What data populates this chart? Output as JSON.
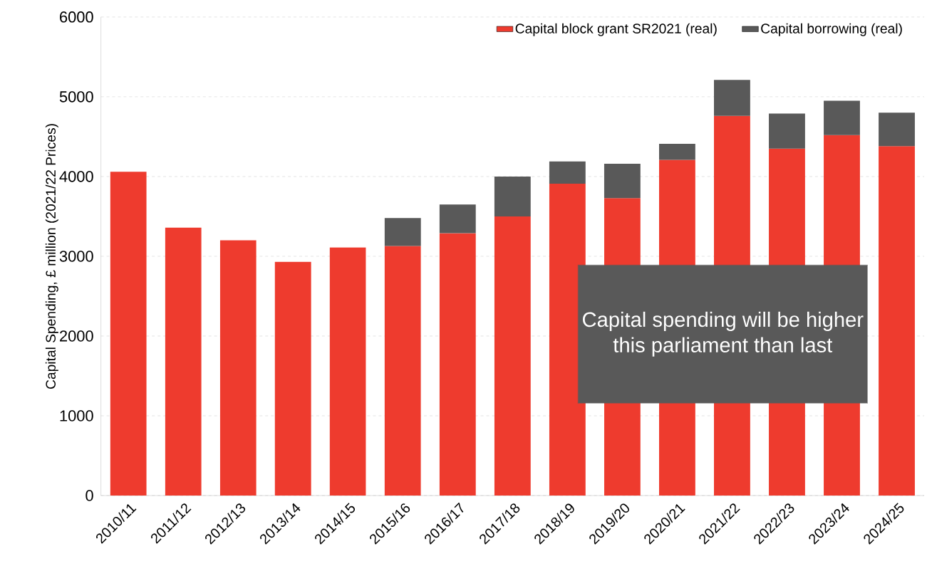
{
  "chart_data": {
    "type": "bar",
    "stacked": true,
    "categories": [
      "2010/11",
      "2011/12",
      "2012/13",
      "2013/14",
      "2014/15",
      "2015/16",
      "2016/17",
      "2017/18",
      "2018/19",
      "2019/20",
      "2020/21",
      "2021/22",
      "2022/23",
      "2023/24",
      "2024/25"
    ],
    "series": [
      {
        "name": "Capital block grant SR2021 (real)",
        "color": "#ee3b2e",
        "values": [
          4060,
          3360,
          3200,
          2930,
          3110,
          3130,
          3290,
          3500,
          3910,
          3730,
          4210,
          4760,
          4350,
          4520,
          4380
        ]
      },
      {
        "name": "Capital borrowing (real)",
        "color": "#595959",
        "values": [
          null,
          null,
          null,
          null,
          null,
          350,
          360,
          500,
          280,
          430,
          200,
          450,
          440,
          430,
          420
        ]
      }
    ],
    "ylabel": "Capital Spending, £ million (2021/22 Prices)",
    "ylim": [
      0,
      6000
    ],
    "yticks": [
      0,
      1000,
      2000,
      3000,
      4000,
      5000,
      6000
    ],
    "grid": "y",
    "legend": "top right",
    "annotations": [
      "Capital spending will be higher this parliament than last"
    ]
  }
}
